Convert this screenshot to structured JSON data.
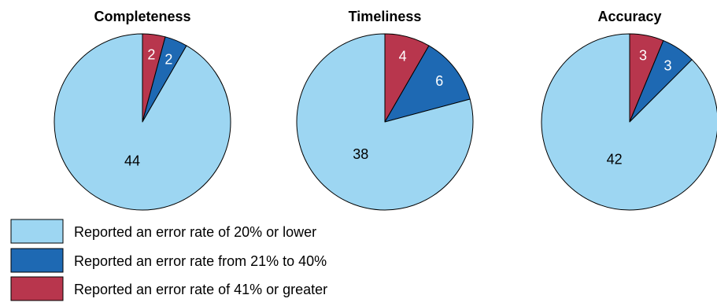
{
  "chart_data": {
    "type": "pie",
    "categories": [
      "Reported an error rate of 20% or lower",
      "Reported an error rate from 21% to 40%",
      "Reported an error rate of 41% or greater"
    ],
    "colors": [
      "#9dd6f2",
      "#1e69b3",
      "#b8364d"
    ],
    "label_colors": [
      "#000000",
      "#ffffff",
      "#ffffff"
    ],
    "legend_position": "bottom-left",
    "charts": [
      {
        "title": "Completeness",
        "values": [
          44,
          2,
          2
        ]
      },
      {
        "title": "Timeliness",
        "values": [
          38,
          6,
          4
        ]
      },
      {
        "title": "Accuracy",
        "values": [
          42,
          3,
          3
        ]
      }
    ]
  }
}
